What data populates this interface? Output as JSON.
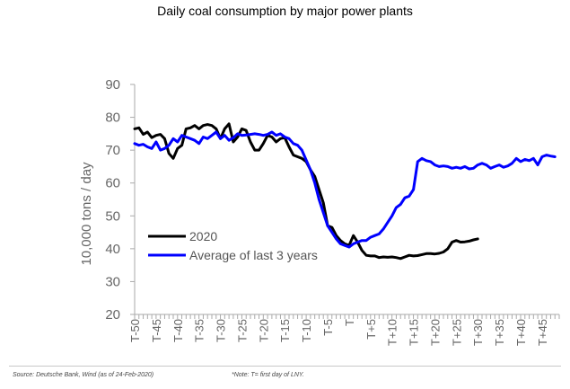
{
  "chart_data": {
    "type": "line",
    "title": "Daily coal consumption by major power plants",
    "xlabel": "",
    "ylabel": "10,000 tons / day",
    "ylim": [
      20,
      90
    ],
    "yticks": [
      20,
      30,
      40,
      50,
      60,
      70,
      80,
      90
    ],
    "xlim": [
      -50,
      49
    ],
    "xtick_positions": [
      -50,
      -45,
      -40,
      -35,
      -30,
      -25,
      -20,
      -15,
      -10,
      -5,
      0,
      5,
      10,
      15,
      20,
      25,
      30,
      35,
      40,
      45
    ],
    "xtick_labels": [
      "T-50",
      "T-45",
      "T-40",
      "T-35",
      "T-30",
      "T-25",
      "T-20",
      "T-15",
      "T-10",
      "T-5",
      "T",
      "T+5",
      "T+10",
      "T+15",
      "T+20",
      "T+25",
      "T+30",
      "T+35",
      "T+40",
      "T+45"
    ],
    "legend_position": "lower-left",
    "series": [
      {
        "name": "2020",
        "color": "#000000",
        "x": [
          -50,
          -49,
          -48,
          -47,
          -46,
          -45,
          -44,
          -43,
          -42,
          -41,
          -40,
          -39,
          -38,
          -37,
          -36,
          -35,
          -34,
          -33,
          -32,
          -31,
          -30,
          -29,
          -28,
          -27,
          -26,
          -25,
          -24,
          -23,
          -22,
          -21,
          -20,
          -19,
          -18,
          -17,
          -16,
          -15,
          -14,
          -13,
          -12,
          -11,
          -10,
          -9,
          -8,
          -7,
          -6,
          -5,
          -4,
          -3,
          -2,
          -1,
          0,
          1,
          2,
          3,
          4,
          5,
          6,
          7,
          8,
          9,
          10,
          11,
          12,
          13,
          14,
          15,
          16,
          17,
          18,
          19,
          20,
          21,
          22,
          23,
          24,
          25,
          26,
          27,
          28,
          29,
          30
        ],
        "values": [
          76.5,
          76.8,
          74.8,
          75.5,
          73.8,
          74.5,
          74.8,
          73.5,
          69,
          67.5,
          70.5,
          71.5,
          76.5,
          76.8,
          77.5,
          76.5,
          77.5,
          77.8,
          77.5,
          76.5,
          73.5,
          76.5,
          78,
          72.5,
          74,
          76.5,
          76,
          72.5,
          70,
          70,
          72,
          74.5,
          74,
          72.5,
          73.5,
          73.8,
          71,
          68.5,
          68,
          67.5,
          66.5,
          64,
          62,
          58,
          54,
          47,
          46.5,
          44,
          42.5,
          41.5,
          41,
          44,
          42,
          39.5,
          38,
          37.8,
          37.8,
          37.3,
          37.5,
          37.4,
          37.5,
          37.3,
          37,
          37.5,
          38,
          37.8,
          37.9,
          38.2,
          38.5,
          38.5,
          38.4,
          38.6,
          39,
          40,
          42,
          42.5,
          42,
          42.1,
          42.3,
          42.7,
          43
        ]
      },
      {
        "name": "Average of last 3 years",
        "color": "#0000ff",
        "x": [
          -50,
          -49,
          -48,
          -47,
          -46,
          -45,
          -44,
          -43,
          -42,
          -41,
          -40,
          -39,
          -38,
          -37,
          -36,
          -35,
          -34,
          -33,
          -32,
          -31,
          -30,
          -29,
          -28,
          -27,
          -26,
          -25,
          -24,
          -23,
          -22,
          -21,
          -20,
          -19,
          -18,
          -17,
          -16,
          -15,
          -14,
          -13,
          -12,
          -11,
          -10,
          -9,
          -8,
          -7,
          -6,
          -5,
          -4,
          -3,
          -2,
          -1,
          0,
          1,
          2,
          3,
          4,
          5,
          6,
          7,
          8,
          9,
          10,
          11,
          12,
          13,
          14,
          15,
          16,
          17,
          18,
          19,
          20,
          21,
          22,
          23,
          24,
          25,
          26,
          27,
          28,
          29,
          30,
          31,
          32,
          33,
          34,
          35,
          36,
          37,
          38,
          39,
          40,
          41,
          42,
          43,
          44,
          45,
          46,
          47,
          48
        ],
        "values": [
          72,
          71.5,
          71.8,
          71,
          70.5,
          72.5,
          70,
          70.5,
          71.5,
          73.5,
          72.5,
          74.5,
          74,
          73.5,
          73,
          72,
          74,
          73.5,
          74.5,
          75.5,
          73.5,
          74.5,
          73,
          73.8,
          75,
          74.5,
          74.6,
          74.8,
          75,
          74.8,
          74.5,
          74.8,
          75.5,
          74.5,
          75,
          74,
          73.5,
          72,
          71.5,
          70,
          67,
          64,
          60,
          55,
          51,
          47,
          45,
          43,
          41.5,
          41,
          40.5,
          41.5,
          42,
          42.5,
          42.5,
          43.5,
          44,
          44.5,
          46,
          48,
          50,
          52.5,
          53.5,
          55.5,
          56,
          58,
          66.5,
          67.5,
          66.8,
          66.5,
          65.5,
          65,
          65.2,
          65,
          64.5,
          64.8,
          64.5,
          65,
          64.3,
          64.5,
          65.5,
          66,
          65.5,
          64.5,
          65,
          65.5,
          64.8,
          65.2,
          66,
          67.5,
          66.5,
          67.2,
          66.8,
          67.5,
          65.5,
          68,
          68.5,
          68.2,
          68
        ]
      }
    ]
  },
  "footnotes": {
    "source": "Source: Deutsche Bank, Wind (as of 24-Feb-2020)",
    "note": "*Note: T= first day of LNY."
  }
}
